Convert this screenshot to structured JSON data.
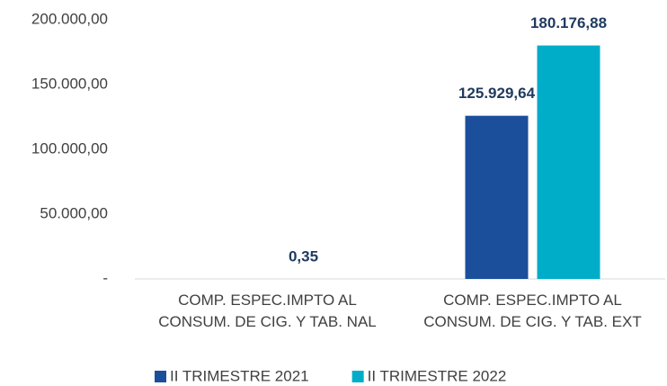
{
  "chart_data": {
    "type": "bar",
    "categories": [
      "COMP. ESPEC.IMPTO AL\nCONSUM. DE CIG. Y TAB. NAL",
      "COMP. ESPEC.IMPTO AL\nCONSUM. DE CIG. Y TAB. EXT"
    ],
    "series": [
      {
        "name": "II TRIMESTRE 2021",
        "color": "#1b4f9c",
        "values": [
          null,
          125929.64
        ],
        "value_labels": [
          null,
          "125.929,64"
        ]
      },
      {
        "name": "II TRIMESTRE 2022",
        "color": "#00adc9",
        "values": [
          0.35,
          180176.88
        ],
        "value_labels": [
          "0,35",
          "180.176,88"
        ]
      }
    ],
    "ylim": [
      0,
      200000
    ],
    "yticks": [
      {
        "value": 0,
        "label": "-"
      },
      {
        "value": 50000,
        "label": "50.000,00"
      },
      {
        "value": 100000,
        "label": "100.000,00"
      },
      {
        "value": 150000,
        "label": "150.000,00"
      },
      {
        "value": 200000,
        "label": "200.000,00"
      }
    ],
    "grid": false,
    "legend": "bottom"
  }
}
